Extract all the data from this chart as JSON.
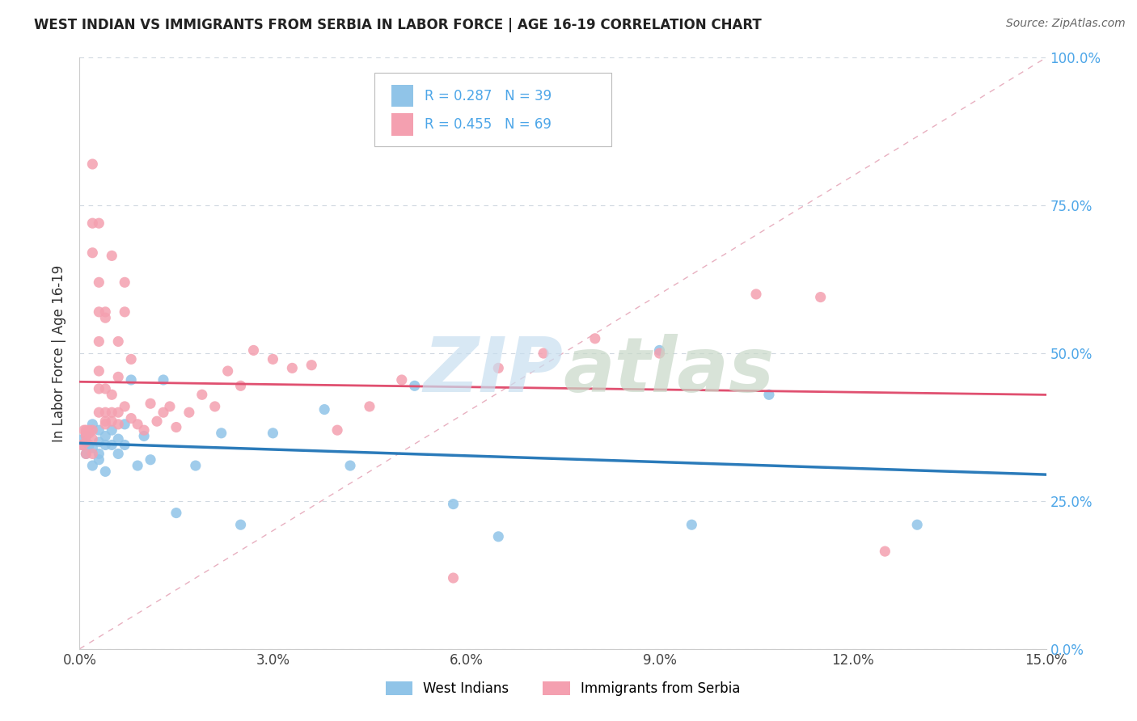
{
  "title": "WEST INDIAN VS IMMIGRANTS FROM SERBIA IN LABOR FORCE | AGE 16-19 CORRELATION CHART",
  "source": "Source: ZipAtlas.com",
  "ylabel": "In Labor Force | Age 16-19",
  "xlim": [
    0.0,
    0.15
  ],
  "ylim": [
    0.0,
    1.0
  ],
  "xticks": [
    0.0,
    0.03,
    0.06,
    0.09,
    0.12,
    0.15
  ],
  "xticklabels": [
    "0.0%",
    "3.0%",
    "6.0%",
    "9.0%",
    "12.0%",
    "15.0%"
  ],
  "yticks": [
    0.0,
    0.25,
    0.5,
    0.75,
    1.0
  ],
  "yticklabels": [
    "0.0%",
    "25.0%",
    "50.0%",
    "75.0%",
    "100.0%"
  ],
  "series1_label": "West Indians",
  "series1_color": "#90c4e8",
  "series1_R": 0.287,
  "series1_N": 39,
  "series2_label": "Immigrants from Serbia",
  "series2_color": "#f4a0b0",
  "series2_R": 0.455,
  "series2_N": 69,
  "watermark": "ZIPatlas",
  "background_color": "#ffffff",
  "grid_color": "#cccccc",
  "blue_line_color": "#2b7bba",
  "pink_line_color": "#e05070",
  "right_axis_color": "#4da6e8",
  "west_indians_x": [
    0.0005,
    0.001,
    0.001,
    0.0015,
    0.002,
    0.002,
    0.002,
    0.003,
    0.003,
    0.003,
    0.003,
    0.004,
    0.004,
    0.004,
    0.005,
    0.005,
    0.006,
    0.006,
    0.007,
    0.007,
    0.008,
    0.009,
    0.01,
    0.011,
    0.013,
    0.015,
    0.018,
    0.022,
    0.025,
    0.03,
    0.038,
    0.042,
    0.052,
    0.058,
    0.065,
    0.09,
    0.095,
    0.107,
    0.13
  ],
  "west_indians_y": [
    0.355,
    0.36,
    0.33,
    0.345,
    0.34,
    0.31,
    0.38,
    0.35,
    0.33,
    0.37,
    0.32,
    0.345,
    0.36,
    0.3,
    0.345,
    0.37,
    0.33,
    0.355,
    0.345,
    0.38,
    0.455,
    0.31,
    0.36,
    0.32,
    0.455,
    0.23,
    0.31,
    0.365,
    0.21,
    0.365,
    0.405,
    0.31,
    0.445,
    0.245,
    0.19,
    0.505,
    0.21,
    0.43,
    0.21
  ],
  "serbia_x": [
    0.0003,
    0.0005,
    0.0007,
    0.001,
    0.001,
    0.001,
    0.001,
    0.001,
    0.0015,
    0.0015,
    0.002,
    0.002,
    0.002,
    0.002,
    0.002,
    0.002,
    0.003,
    0.003,
    0.003,
    0.003,
    0.003,
    0.003,
    0.003,
    0.004,
    0.004,
    0.004,
    0.004,
    0.004,
    0.004,
    0.005,
    0.005,
    0.005,
    0.005,
    0.006,
    0.006,
    0.006,
    0.006,
    0.007,
    0.007,
    0.007,
    0.008,
    0.008,
    0.009,
    0.01,
    0.011,
    0.012,
    0.013,
    0.014,
    0.015,
    0.017,
    0.019,
    0.021,
    0.023,
    0.025,
    0.027,
    0.03,
    0.033,
    0.036,
    0.04,
    0.045,
    0.05,
    0.058,
    0.065,
    0.072,
    0.08,
    0.09,
    0.105,
    0.115,
    0.125
  ],
  "serbia_y": [
    0.345,
    0.345,
    0.37,
    0.365,
    0.35,
    0.33,
    0.37,
    0.36,
    0.365,
    0.37,
    0.355,
    0.33,
    0.82,
    0.67,
    0.72,
    0.37,
    0.47,
    0.52,
    0.57,
    0.62,
    0.72,
    0.44,
    0.4,
    0.44,
    0.385,
    0.57,
    0.4,
    0.38,
    0.56,
    0.385,
    0.43,
    0.665,
    0.4,
    0.4,
    0.46,
    0.52,
    0.38,
    0.41,
    0.57,
    0.62,
    0.39,
    0.49,
    0.38,
    0.37,
    0.415,
    0.385,
    0.4,
    0.41,
    0.375,
    0.4,
    0.43,
    0.41,
    0.47,
    0.445,
    0.505,
    0.49,
    0.475,
    0.48,
    0.37,
    0.41,
    0.455,
    0.12,
    0.475,
    0.5,
    0.525,
    0.5,
    0.6,
    0.595,
    0.165
  ]
}
